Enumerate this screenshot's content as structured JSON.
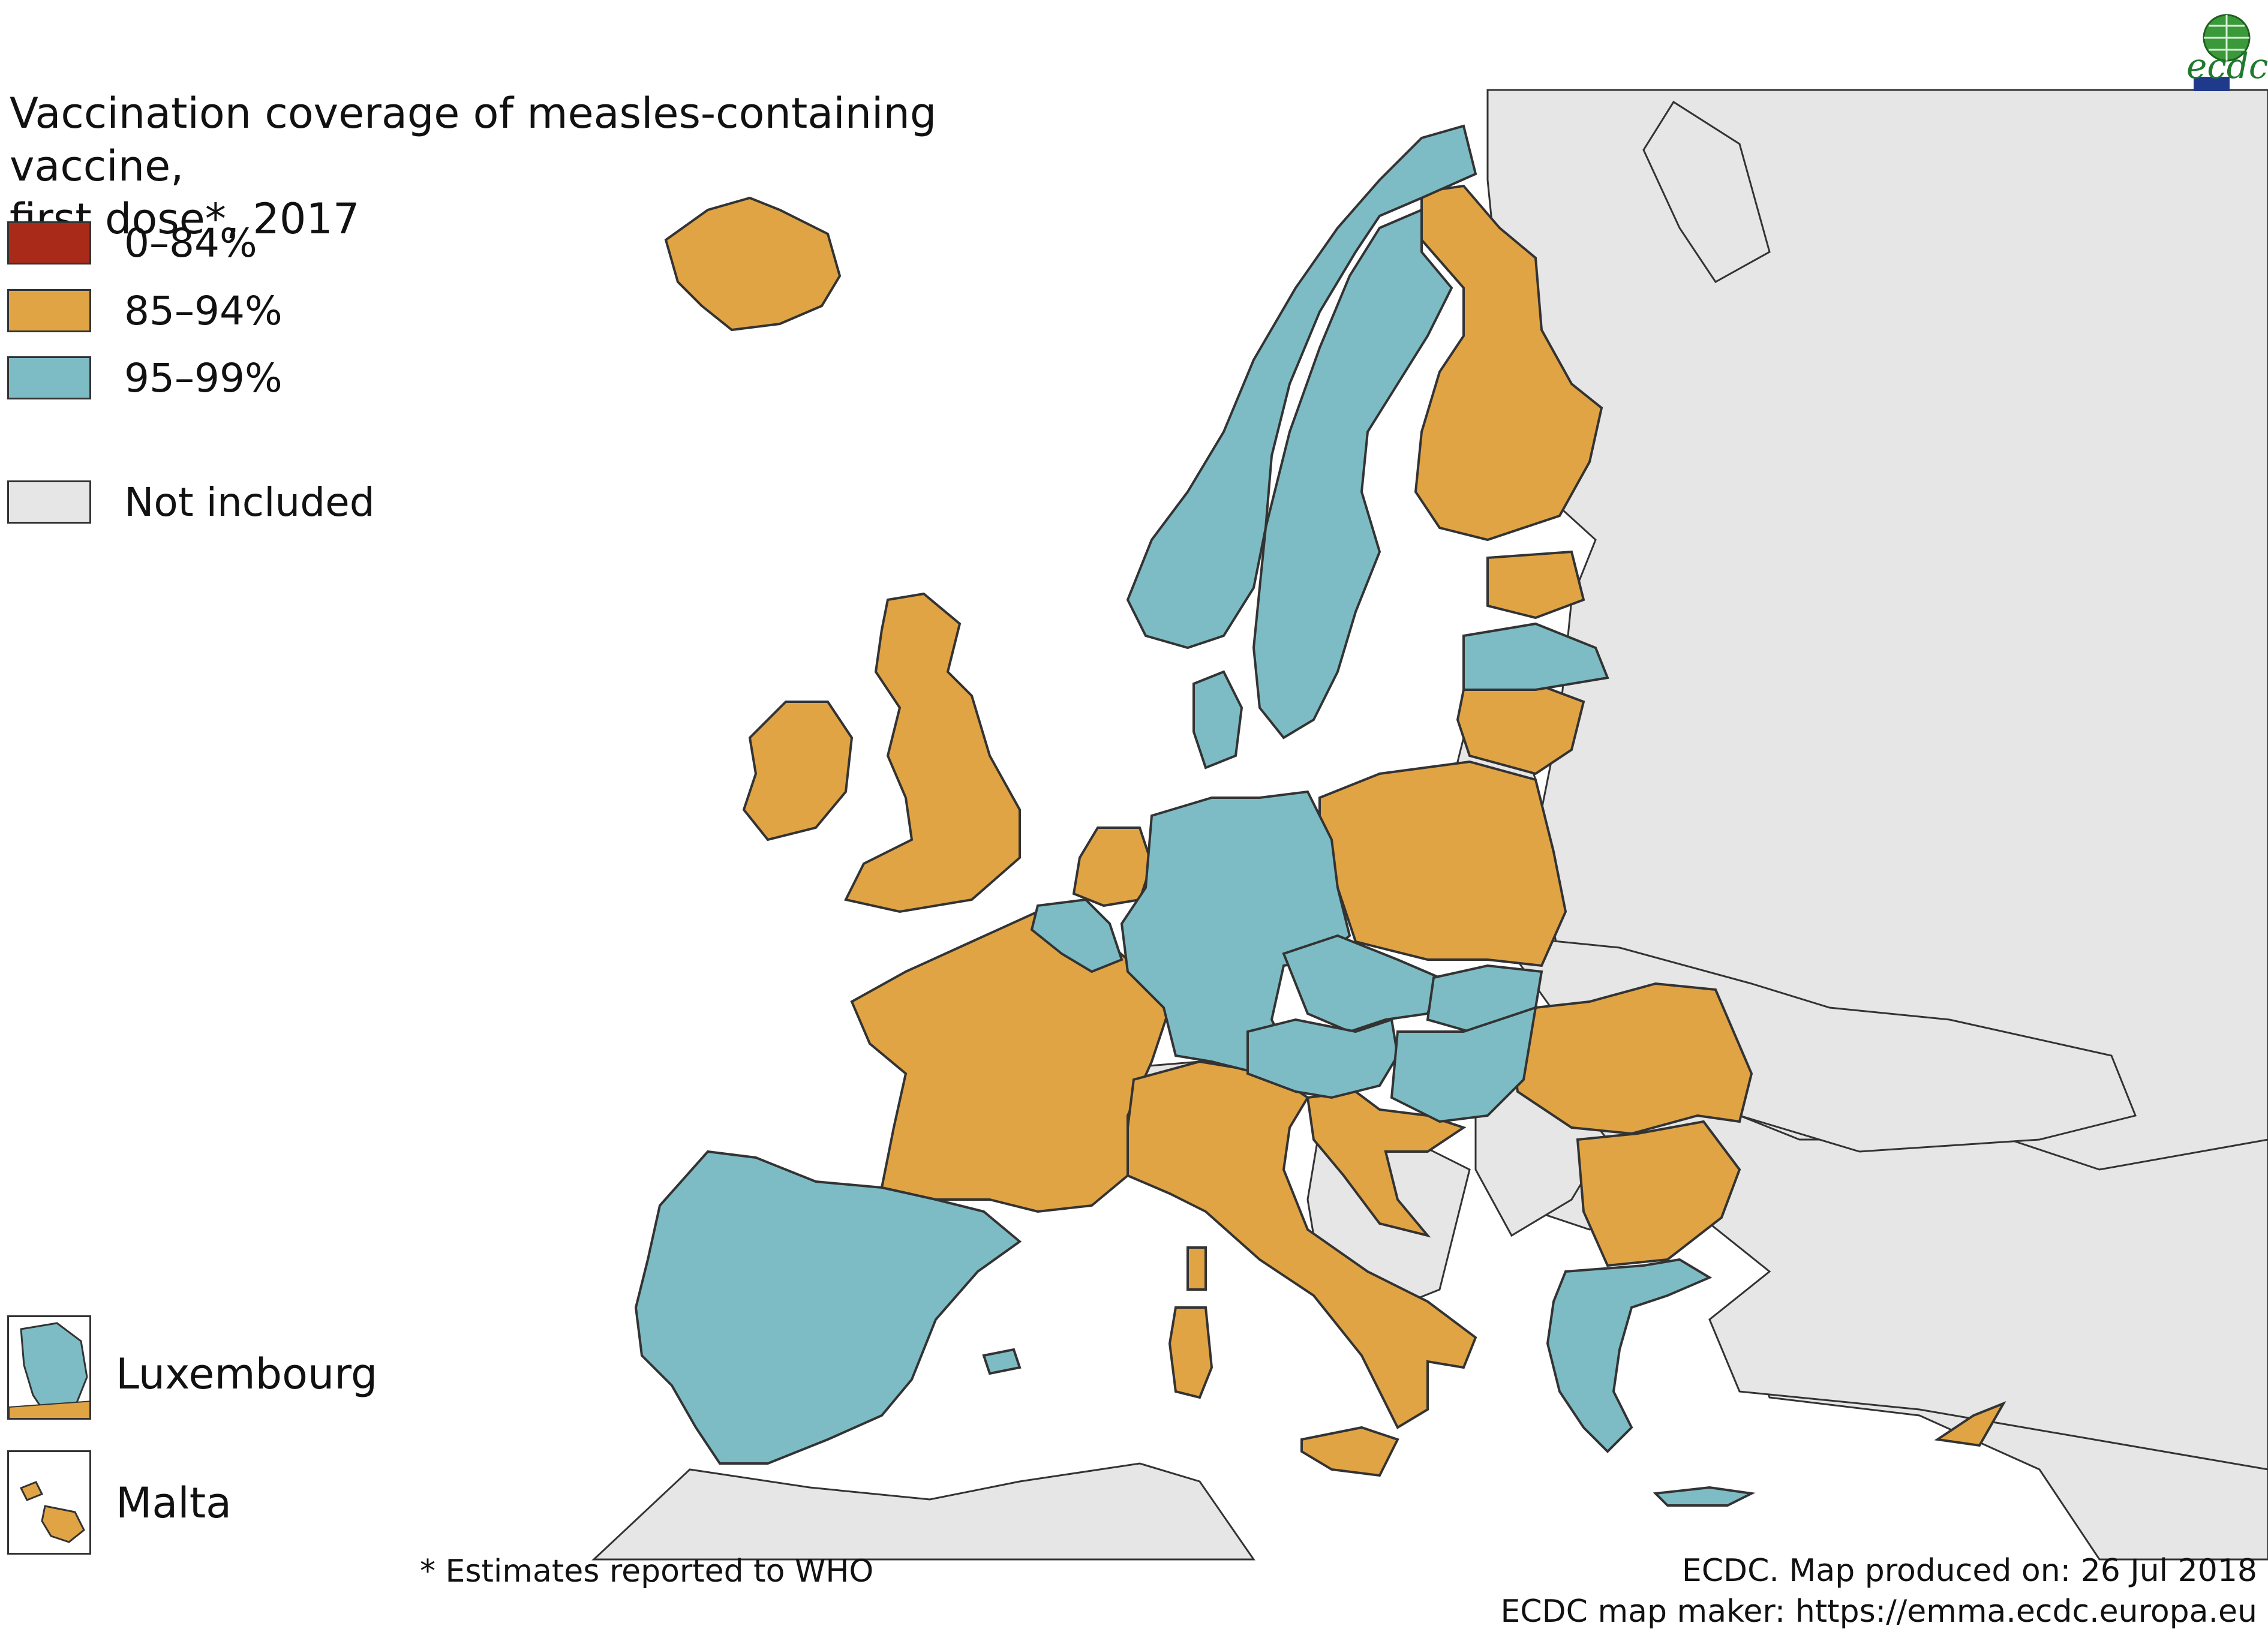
{
  "map": {
    "title": "Vaccination coverage of measles-containing vaccine,\nfirst dose*, 2017",
    "colors": {
      "sea": "#ffffff",
      "not_included": "#e6e6e6",
      "c0_84": "#aa2a1a",
      "c85_94": "#e0a445",
      "c95_99": "#7dbcc4",
      "border": "#333333"
    },
    "legend": [
      {
        "label": "0–84%",
        "color": "#aa2a1a"
      },
      {
        "label": "85–94%",
        "color": "#e0a445"
      },
      {
        "label": "95–99%",
        "color": "#7dbcc4"
      },
      {
        "label": "Not included",
        "color": "#e6e6e6"
      }
    ],
    "insets": [
      {
        "label": "Luxembourg",
        "color": "#7dbcc4"
      },
      {
        "label": "Malta",
        "color": "#e0a445"
      }
    ],
    "footnote": "* Estimates reported to WHO",
    "credits": {
      "line1": "ECDC. Map produced on: 26 Jul 2018",
      "line2": "ECDC map maker: https://emma.ecdc.europa.eu"
    },
    "logo": {
      "text": "ecdc",
      "icon": "globe-icon"
    }
  }
}
